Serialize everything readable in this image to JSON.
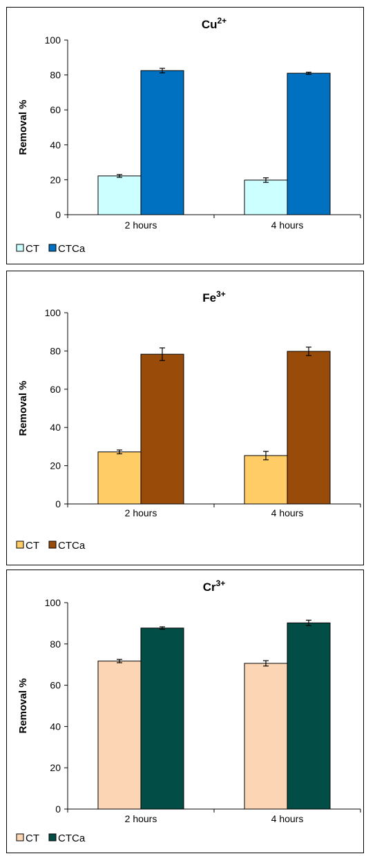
{
  "chart_data": [
    {
      "type": "bar",
      "title": "Cu",
      "title_sup": "2+",
      "xlabel": "",
      "ylabel": "Removal %",
      "ylim": [
        0,
        100
      ],
      "yticks": [
        0,
        20,
        40,
        60,
        80,
        100
      ],
      "categories": [
        "2 hours",
        "4 hours"
      ],
      "grid": false,
      "legend_position": "bottom-left",
      "series": [
        {
          "name": "CT",
          "color": "#ccffff",
          "values": [
            22.2,
            19.8
          ],
          "errors": [
            0.8,
            1.3
          ]
        },
        {
          "name": "CTCa",
          "color": "#0070c0",
          "values": [
            82.5,
            81.0
          ],
          "errors": [
            1.3,
            0.6
          ]
        }
      ]
    },
    {
      "type": "bar",
      "title": "Fe",
      "title_sup": "3+",
      "xlabel": "",
      "ylabel": "Removal %",
      "ylim": [
        0,
        100
      ],
      "yticks": [
        0,
        20,
        40,
        60,
        80,
        100
      ],
      "categories": [
        "2 hours",
        "4 hours"
      ],
      "grid": false,
      "legend_position": "bottom-left",
      "series": [
        {
          "name": "CT",
          "color": "#ffcc66",
          "values": [
            27.2,
            25.3
          ],
          "errors": [
            1.0,
            2.2
          ]
        },
        {
          "name": "CTCa",
          "color": "#994c0a",
          "values": [
            78.3,
            79.8
          ],
          "errors": [
            3.3,
            2.2
          ]
        }
      ]
    },
    {
      "type": "bar",
      "title": "Cr",
      "title_sup": "3+",
      "xlabel": "",
      "ylabel": "Removal %",
      "ylim": [
        0,
        100
      ],
      "yticks": [
        0,
        20,
        40,
        60,
        80,
        100
      ],
      "categories": [
        "2 hours",
        "4 hours"
      ],
      "grid": false,
      "legend_position": "bottom-left",
      "series": [
        {
          "name": "CT",
          "color": "#fcd5b4",
          "values": [
            71.7,
            70.6
          ],
          "errors": [
            0.8,
            1.3
          ]
        },
        {
          "name": "CTCa",
          "color": "#024d45",
          "values": [
            87.7,
            90.2
          ],
          "errors": [
            0.6,
            1.3
          ]
        }
      ]
    }
  ]
}
